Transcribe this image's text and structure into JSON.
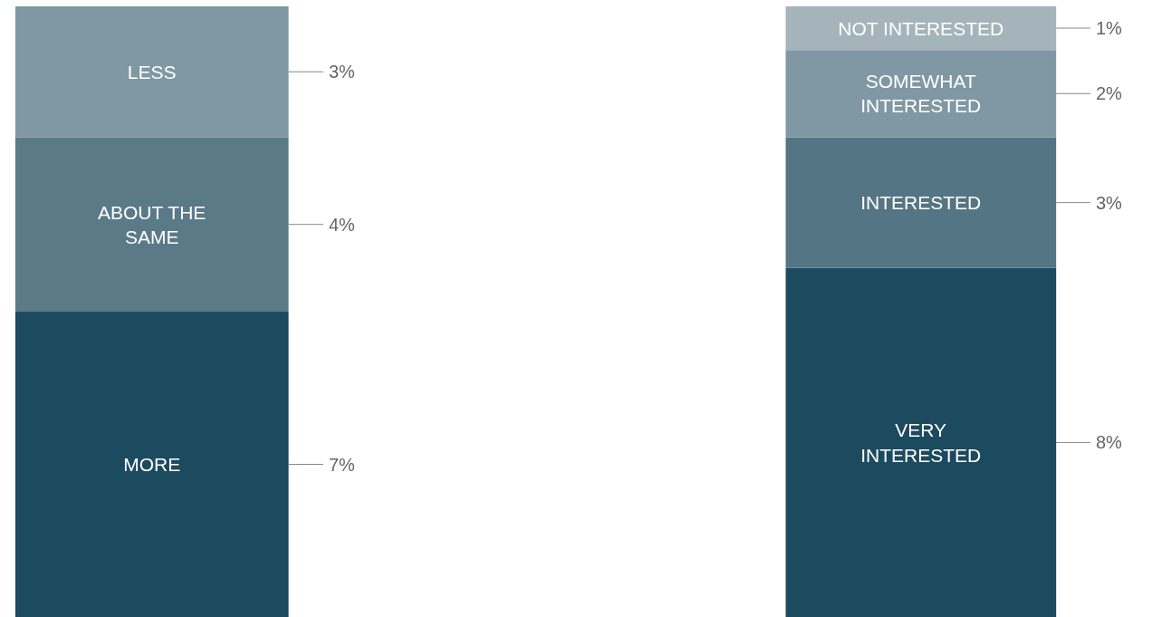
{
  "chart_data": [
    {
      "type": "bar",
      "stacked": true,
      "categories": [
        null
      ],
      "series": [
        {
          "name": "MORE",
          "color": "#1c4a5e",
          "values": [
            7
          ],
          "value_labels": [
            "7%"
          ]
        },
        {
          "name": "ABOUT THE\nSAME",
          "color": "#5a7a88",
          "values": [
            4
          ],
          "value_labels": [
            "4%"
          ]
        },
        {
          "name": "LESS",
          "color": "#7f98a3",
          "values": [
            3
          ],
          "value_labels": [
            "3%"
          ]
        }
      ]
    },
    {
      "type": "bar",
      "stacked": true,
      "categories": [
        null
      ],
      "series": [
        {
          "name": "VERY\nINTERESTED",
          "color": "#1c4a5e",
          "values": [
            8
          ],
          "value_labels": [
            "8%"
          ]
        },
        {
          "name": "INTERESTED",
          "color": "#547583",
          "values": [
            3
          ],
          "value_labels": [
            "3%"
          ]
        },
        {
          "name": "SOMEWHAT\nINTERESTED",
          "color": "#7f98a3",
          "values": [
            2
          ],
          "value_labels": [
            "2%"
          ]
        },
        {
          "name": "NOT INTERESTED",
          "color": "#a5b4bb",
          "values": [
            1
          ],
          "value_labels": [
            "1%"
          ]
        }
      ]
    }
  ]
}
